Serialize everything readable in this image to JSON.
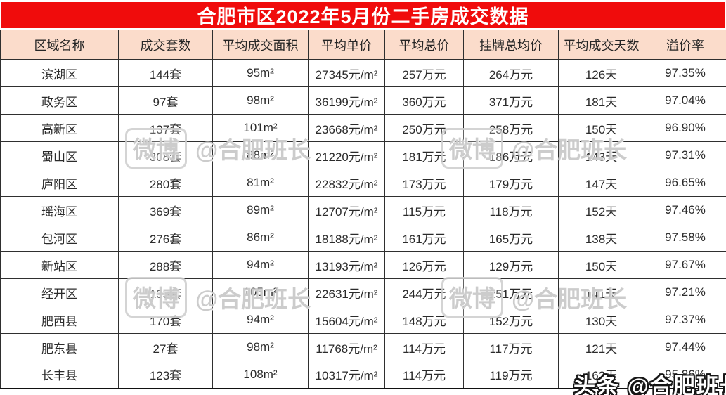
{
  "title": "合肥市区2022年5月份二手房成交数据",
  "table": {
    "columns": [
      "区域名称",
      "成交套数",
      "平均成交面积",
      "平均单价",
      "平均总价",
      "挂牌总均价",
      "平均成交天数",
      "溢价率"
    ],
    "rows": [
      [
        "滨湖区",
        "144套",
        "95m²",
        "27345元/m²",
        "257万元",
        "264万元",
        "126天",
        "97.35%"
      ],
      [
        "政务区",
        "97套",
        "98m²",
        "36199元/m²",
        "360万元",
        "371万元",
        "181天",
        "97.04%"
      ],
      [
        "高新区",
        "137套",
        "101m²",
        "23668元/m²",
        "250万元",
        "258万元",
        "150天",
        "96.90%"
      ],
      [
        "蜀山区",
        "308套",
        "88m²",
        "21220元/m²",
        "181万元",
        "186万元",
        "143天",
        "97.31%"
      ],
      [
        "庐阳区",
        "280套",
        "81m²",
        "22832元/m²",
        "173万元",
        "179万元",
        "147天",
        "96.65%"
      ],
      [
        "瑶海区",
        "369套",
        "89m²",
        "12707元/m²",
        "115万元",
        "118万元",
        "152天",
        "97.46%"
      ],
      [
        "包河区",
        "276套",
        "86m²",
        "18188元/m²",
        "161万元",
        "165万元",
        "138天",
        "97.58%"
      ],
      [
        "新站区",
        "288套",
        "94m²",
        "13193元/m²",
        "126万元",
        "129万元",
        "150天",
        "97.67%"
      ],
      [
        "经开区",
        "133套",
        "105m²",
        "22631元/m²",
        "244万元",
        "251万元",
        "141天",
        "97.21%"
      ],
      [
        "肥西县",
        "170套",
        "94m²",
        "15604元/m²",
        "148万元",
        "152万元",
        "130天",
        "97.37%"
      ],
      [
        "肥东县",
        "27套",
        "98m²",
        "11768元/m²",
        "114万元",
        "117万元",
        "121天",
        "97.44%"
      ],
      [
        "长丰县",
        "123套",
        "108m²",
        "10317元/m²",
        "114万元",
        "119万元",
        "162天",
        "95.86%"
      ]
    ]
  },
  "watermarks": {
    "weibo_badge": "微博",
    "weibo_handle": "@合肥班长",
    "toutiao_full": "头条 @合肥班长"
  },
  "colors": {
    "title_bg": "#f00c0c",
    "title_text": "#ffffff",
    "header_bg": "#fbdccb",
    "border": "#2f2f2f",
    "body_text": "#2b2b2b"
  },
  "chart_data": {
    "type": "table",
    "title": "合肥市区2022年5月份二手房成交数据",
    "categories": [
      "滨湖区",
      "政务区",
      "高新区",
      "蜀山区",
      "庐阳区",
      "瑶海区",
      "包河区",
      "新站区",
      "经开区",
      "肥西县",
      "肥东县",
      "长丰县"
    ],
    "series": [
      {
        "name": "成交套数(套)",
        "values": [
          144,
          97,
          137,
          308,
          280,
          369,
          276,
          288,
          133,
          170,
          27,
          123
        ]
      },
      {
        "name": "平均成交面积(m²)",
        "values": [
          95,
          98,
          101,
          88,
          81,
          89,
          86,
          94,
          105,
          94,
          98,
          108
        ]
      },
      {
        "name": "平均单价(元/m²)",
        "values": [
          27345,
          36199,
          23668,
          21220,
          22832,
          12707,
          18188,
          13193,
          22631,
          15604,
          11768,
          10317
        ]
      },
      {
        "name": "平均总价(万元)",
        "values": [
          257,
          360,
          250,
          181,
          173,
          115,
          161,
          126,
          244,
          148,
          114,
          114
        ]
      },
      {
        "name": "挂牌总均价(万元)",
        "values": [
          264,
          371,
          258,
          186,
          179,
          118,
          165,
          129,
          251,
          152,
          117,
          119
        ]
      },
      {
        "name": "平均成交天数(天)",
        "values": [
          126,
          181,
          150,
          143,
          147,
          152,
          138,
          150,
          141,
          130,
          121,
          162
        ]
      },
      {
        "name": "溢价率(%)",
        "values": [
          97.35,
          97.04,
          96.9,
          97.31,
          96.65,
          97.46,
          97.58,
          97.67,
          97.21,
          97.37,
          97.44,
          95.86
        ]
      }
    ]
  }
}
